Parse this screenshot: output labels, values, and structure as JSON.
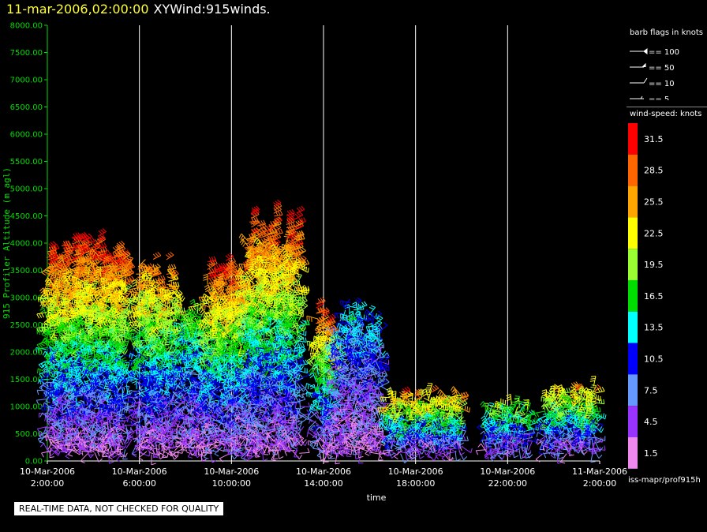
{
  "header": {
    "datetime": "11-mar-2006,02:00:00",
    "title": "XYWind:915winds."
  },
  "chart_data": {
    "type": "wind-barb time-height",
    "ylabel": "915 Profiler Altitude (m agl)",
    "xlabel": "time",
    "ylim": [
      0,
      8000
    ],
    "yticks": [
      "0.00",
      "500.00",
      "1000.00",
      "1500.00",
      "2000.00",
      "2500.00",
      "3000.00",
      "3500.00",
      "4000.00",
      "4500.00",
      "5000.00",
      "5500.00",
      "6000.00",
      "6500.00",
      "7000.00",
      "7500.00",
      "8000.00"
    ],
    "xlim_hours": [
      0,
      24
    ],
    "xticks": [
      {
        "hour": 0,
        "line1": "10-Mar-2006",
        "line2": "2:00:00"
      },
      {
        "hour": 4,
        "line1": "10-Mar-2006",
        "line2": "6:00:00"
      },
      {
        "hour": 8,
        "line1": "10-Mar-2006",
        "line2": "10:00:00"
      },
      {
        "hour": 12,
        "line1": "10-Mar-2006",
        "line2": "14:00:00"
      },
      {
        "hour": 16,
        "line1": "10-Mar-2006",
        "line2": "18:00:00"
      },
      {
        "hour": 20,
        "line1": "10-Mar-2006",
        "line2": "22:00:00"
      },
      {
        "hour": 24,
        "line1": "11-Mar-2006",
        "line2": "2:00:00"
      }
    ],
    "grid": "vertical",
    "clusters": [
      {
        "hour_start": 0.0,
        "hour_end": 3.5,
        "top_m": 4200,
        "max_kt": 33
      },
      {
        "hour_start": 3.9,
        "hour_end": 5.6,
        "top_m": 3800,
        "max_kt": 30
      },
      {
        "hour_start": 5.8,
        "hour_end": 7.0,
        "top_m": 3200,
        "max_kt": 22
      },
      {
        "hour_start": 7.0,
        "hour_end": 8.6,
        "top_m": 3800,
        "max_kt": 33
      },
      {
        "hour_start": 8.6,
        "hour_end": 11.0,
        "top_m": 4700,
        "max_kt": 33
      },
      {
        "hour_start": 11.7,
        "hour_end": 12.5,
        "top_m": 2900,
        "max_kt": 32
      },
      {
        "hour_start": 12.5,
        "hour_end": 14.5,
        "top_m": 3000,
        "max_kt": 14
      },
      {
        "hour_start": 14.8,
        "hour_end": 18.0,
        "top_m": 1300,
        "max_kt": 28
      },
      {
        "hour_start": 19.1,
        "hour_end": 20.9,
        "top_m": 1100,
        "max_kt": 21
      },
      {
        "hour_start": 21.6,
        "hour_end": 23.9,
        "top_m": 1400,
        "max_kt": 27
      }
    ]
  },
  "legend": {
    "barb_title": "barb flags in knots",
    "barb_items": [
      "== 100",
      "== 50",
      "== 10",
      "== 5"
    ],
    "speed_title": "wind-speed: knots",
    "speed_bins": [
      {
        "label": "31.5",
        "color": "#ff0000"
      },
      {
        "label": "28.5",
        "color": "#ff6600"
      },
      {
        "label": "25.5",
        "color": "#ffa500"
      },
      {
        "label": "22.5",
        "color": "#ffff00"
      },
      {
        "label": "19.5",
        "color": "#99ff33"
      },
      {
        "label": "16.5",
        "color": "#00dd00"
      },
      {
        "label": "13.5",
        "color": "#00ffff"
      },
      {
        "label": "10.5",
        "color": "#0000ff"
      },
      {
        "label": "7.5",
        "color": "#6699ff"
      },
      {
        "label": "4.5",
        "color": "#9933ff"
      },
      {
        "label": "1.5",
        "color": "#ee88ee"
      }
    ]
  },
  "footer": {
    "path": "iss-mapr/prof915h",
    "note": "REAL-TIME DATA, NOT CHECKED FOR QUALITY"
  },
  "colors": {
    "axis": "#00dd00",
    "grid": "#ffffff",
    "text": "#ffffff",
    "date": "#ffff33"
  }
}
